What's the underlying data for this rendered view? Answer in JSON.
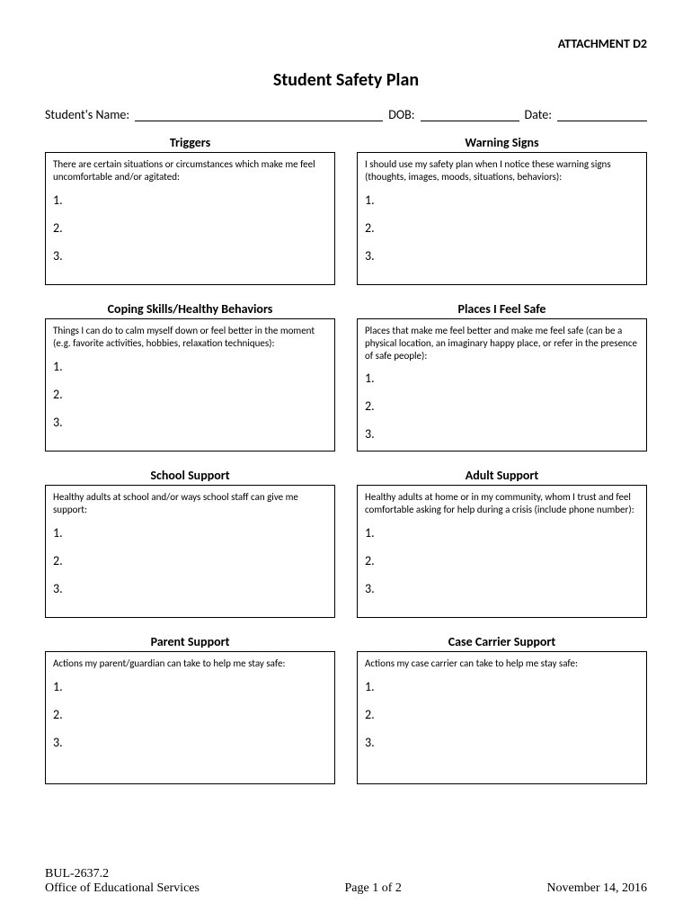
{
  "header": {
    "attachment": "ATTACHMENT D2",
    "title": "Student Safety Plan",
    "name_label": "Student's Name:",
    "dob_label": "DOB:",
    "date_label": "Date:"
  },
  "sections": [
    {
      "title": "Triggers",
      "desc": "There are certain situations or circumstances which make me feel uncomfortable and/or agitated:",
      "items": [
        "1.",
        "2.",
        "3."
      ]
    },
    {
      "title": "Warning Signs",
      "desc": "I should use my safety plan when I notice these warning signs (thoughts, images, moods, situations, behaviors):",
      "items": [
        "1.",
        "2.",
        "3."
      ]
    },
    {
      "title": "Coping Skills/Healthy Behaviors",
      "desc": "Things I can do to calm myself down or feel better in the moment (e.g. favorite activities, hobbies, relaxation techniques):",
      "items": [
        "1.",
        "2.",
        "3."
      ]
    },
    {
      "title": "Places I Feel Safe",
      "desc": "Places that make me feel better and make me feel safe (can be a physical location, an imaginary happy place, or refer in the presence of safe people):",
      "items": [
        "1.",
        "2.",
        "3."
      ]
    },
    {
      "title": "School Support",
      "desc": "Healthy adults at school and/or ways school staff can give me support:",
      "items": [
        "1.",
        "2.",
        "3."
      ]
    },
    {
      "title": "Adult Support",
      "desc": "Healthy adults at home or in my community, whom I trust and feel comfortable asking for help during a crisis (include phone number):",
      "items": [
        "1.",
        "2.",
        "3."
      ]
    },
    {
      "title": "Parent Support",
      "desc": "Actions my parent/guardian can take to help me stay safe:",
      "items": [
        "1.",
        "2.",
        "3."
      ]
    },
    {
      "title": "Case Carrier Support",
      "desc": "Actions my case carrier can take to help me stay safe:",
      "items": [
        "1.",
        "2.",
        "3."
      ]
    }
  ],
  "footer": {
    "ref": "BUL-2637.2",
    "office": "Office of Educational Services",
    "page": "Page 1 of 2",
    "date": "November 14, 2016"
  },
  "style": {
    "border_color": "#000000",
    "background_color": "#ffffff",
    "text_color": "#000000",
    "title_fontsize": 20,
    "section_title_fontsize": 14,
    "desc_fontsize": 11,
    "body_font": "Calibri",
    "footer_font": "Times New Roman"
  }
}
